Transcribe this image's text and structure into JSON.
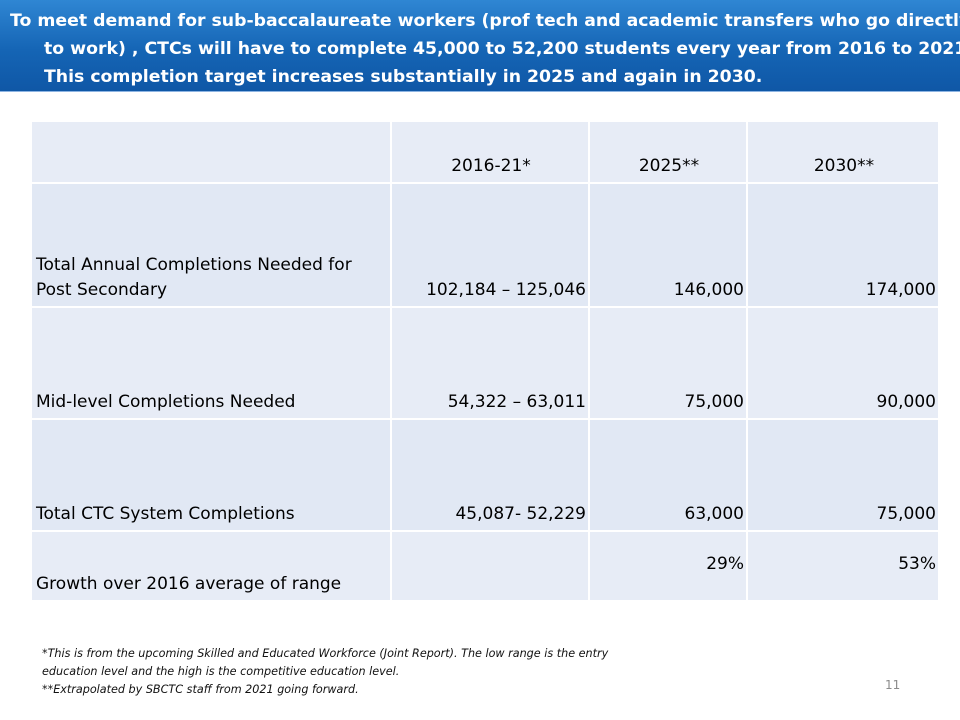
{
  "banner": {
    "text": "To meet demand for sub-baccalaureate workers (prof tech and academic transfers who go directly to work) , CTCs will have to complete 45,000  to 52,200  students every year from 2016 to 2021. This completion target increases substantially in 2025 and again in 2030."
  },
  "table": {
    "headers": [
      "",
      "2016-21*",
      "2025**",
      "2030**"
    ],
    "rows": [
      [
        "Total Annual Completions Needed for Post Secondary",
        "102,184 – 125,046",
        "146,000",
        "174,000"
      ],
      [
        "Mid-level Completions Needed",
        "54,322 – 63,011",
        "75,000",
        "90,000"
      ],
      [
        "Total CTC System Completions",
        "45,087- 52,229",
        "63,000",
        "75,000"
      ],
      [
        "Growth over 2016 average of range",
        "",
        "29%",
        "53%"
      ]
    ]
  },
  "footnotes": {
    "line1": "*This is from the upcoming Skilled and Educated Workforce (Joint Report).  The low range is the entry education level and the high is the competitive education level.",
    "line2": "**Extrapolated by SBCTC staff from 2021 going forward."
  },
  "page_number": "11",
  "colors": {
    "banner_top": "#2f86d3",
    "banner_bottom": "#0f57a6",
    "cell_fill": "#e7ecf6",
    "text": "#000000",
    "page_number": "#8c8c8c"
  }
}
